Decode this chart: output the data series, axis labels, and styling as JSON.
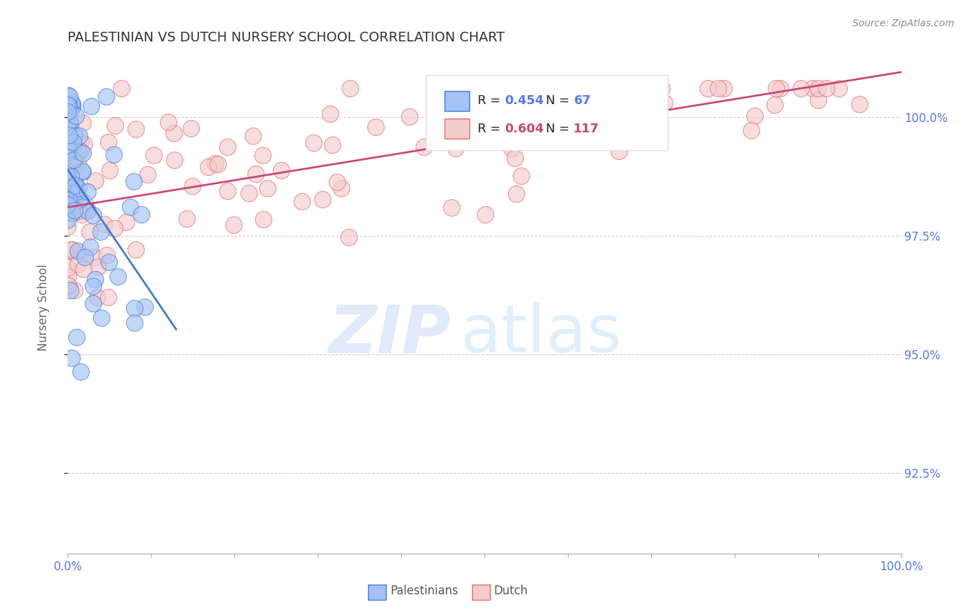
{
  "title": "PALESTINIAN VS DUTCH NURSERY SCHOOL CORRELATION CHART",
  "source": "Source: ZipAtlas.com",
  "ylabel": "Nursery School",
  "yticks": [
    0.925,
    0.95,
    0.975,
    1.0
  ],
  "ytick_labels": [
    "92.5%",
    "95.0%",
    "97.5%",
    "100.0%"
  ],
  "xlim": [
    0.0,
    1.0
  ],
  "ylim": [
    0.908,
    1.013
  ],
  "palestinian_fill": "#a4c2f4",
  "dutch_fill": "#f4cccc",
  "palestinian_edge": "#3c78d8",
  "dutch_edge": "#e06666",
  "palestinian_line_color": "#3c78d8",
  "dutch_line_color": "#cc4477",
  "legend_pal_R": 0.454,
  "legend_pal_N": 67,
  "legend_dutch_R": 0.604,
  "legend_dutch_N": 117,
  "background_color": "#ffffff",
  "grid_color": "#cccccc",
  "title_color": "#333333",
  "tick_label_color": "#6699ee",
  "right_tick_color": "#5577ee",
  "watermark_zip_color": "#c9daf8",
  "watermark_atlas_color": "#b6d7f7"
}
